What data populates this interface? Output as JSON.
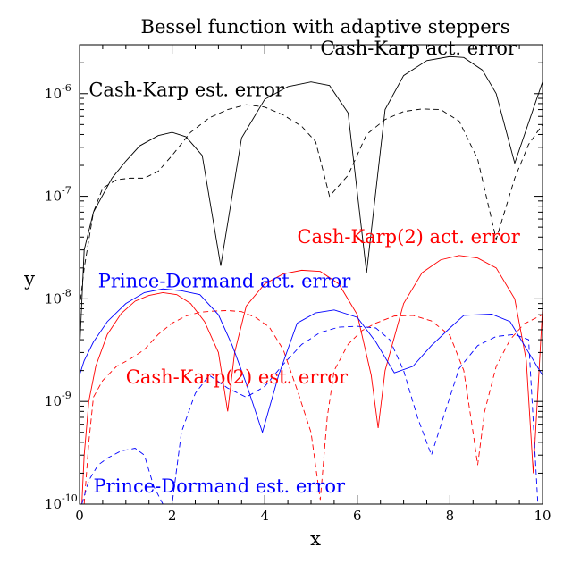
{
  "chart_data": {
    "type": "line",
    "title": "Bessel function with adaptive steppers",
    "xlabel": "x",
    "ylabel": "y",
    "xlim": [
      0,
      10
    ],
    "ylim": [
      1e-10,
      3e-06
    ],
    "yscale": "log",
    "grid": false,
    "x_ticks": [
      0,
      2,
      4,
      6,
      8,
      10
    ],
    "x_tick_labels": [
      "0",
      "2",
      "4",
      "6",
      "8",
      "10"
    ],
    "y_ticks": [
      {
        "value": 1e-10,
        "base": "10",
        "exp": "-10"
      },
      {
        "value": 1e-09,
        "base": "10",
        "exp": "-9"
      },
      {
        "value": 1e-08,
        "base": "10",
        "exp": "-8"
      },
      {
        "value": 1e-07,
        "base": "10",
        "exp": "-7"
      },
      {
        "value": 1e-06,
        "base": "10",
        "exp": "-6"
      }
    ],
    "series": [
      {
        "name": "Cash-Karp act. error",
        "color": "#000000",
        "dash": "solid",
        "label_x": 5.2,
        "label_y": 2.4e-06,
        "x": [
          0.0,
          0.1,
          0.3,
          0.7,
          1.0,
          1.3,
          1.7,
          2.0,
          2.3,
          2.65,
          3.05,
          3.5,
          4.0,
          4.5,
          5.0,
          5.4,
          5.8,
          6.2,
          6.6,
          7.0,
          7.5,
          8.0,
          8.3,
          8.7,
          9.0,
          9.4,
          10.0
        ],
        "y": [
          3e-09,
          3e-08,
          7e-08,
          1.5e-07,
          2.2e-07,
          3.1e-07,
          3.9e-07,
          4.2e-07,
          3.8e-07,
          2.5e-07,
          2.1e-08,
          3.7e-07,
          8.8e-07,
          1.17e-06,
          1.3e-06,
          1.2e-06,
          6.5e-07,
          1.8e-08,
          7e-07,
          1.5e-06,
          2.1e-06,
          2.3e-06,
          2.25e-06,
          1.7e-06,
          1e-06,
          2.1e-07,
          1.3e-06
        ]
      },
      {
        "name": "Cash-Karp est. error",
        "color": "#000000",
        "dash": "dashed",
        "label_x": 0.2,
        "label_y": 9.5e-07,
        "x": [
          0.0,
          0.1,
          0.3,
          0.5,
          0.8,
          1.1,
          1.4,
          1.7,
          2.0,
          2.4,
          2.8,
          3.2,
          3.6,
          4.0,
          4.4,
          4.8,
          5.1,
          5.4,
          5.8,
          6.2,
          6.6,
          7.0,
          7.4,
          7.8,
          8.2,
          8.6,
          9.0,
          9.4,
          9.7,
          10.0
        ],
        "y": [
          8e-09,
          2e-08,
          7e-08,
          1.2e-07,
          1.45e-07,
          1.5e-07,
          1.5e-07,
          1.75e-07,
          2.5e-07,
          4.2e-07,
          5.8e-07,
          7e-07,
          7.8e-07,
          7.4e-07,
          6.2e-07,
          4.8e-07,
          3.4e-07,
          1e-07,
          1.6e-07,
          4e-07,
          5.6e-07,
          6.7e-07,
          7.1e-07,
          7e-07,
          5.4e-07,
          2.3e-07,
          3.8e-08,
          1.5e-07,
          3.2e-07,
          5e-07
        ]
      },
      {
        "name": "Cash-Karp(2) act. error",
        "color": "#ff0000",
        "dash": "solid",
        "label_x": 4.7,
        "label_y": 3.5e-08,
        "x": [
          0.05,
          0.1,
          0.2,
          0.35,
          0.6,
          0.9,
          1.2,
          1.5,
          1.8,
          2.1,
          2.4,
          2.7,
          3.0,
          3.2,
          3.35,
          3.6,
          4.0,
          4.4,
          4.8,
          5.2,
          5.6,
          6.0,
          6.3,
          6.45,
          6.6,
          7.0,
          7.4,
          7.8,
          8.2,
          8.6,
          9.0,
          9.4,
          9.65,
          9.8,
          10.0
        ],
        "y": [
          1e-10,
          3e-10,
          1e-09,
          2.2e-09,
          4.5e-09,
          7.2e-09,
          9.5e-09,
          1.08e-08,
          1.15e-08,
          1.1e-08,
          9e-09,
          6e-09,
          3e-09,
          8e-10,
          3e-09,
          8.5e-09,
          1.4e-08,
          1.75e-08,
          1.9e-08,
          1.85e-08,
          1.4e-08,
          7e-09,
          1.8e-09,
          5.5e-10,
          2e-09,
          9e-09,
          1.8e-08,
          2.4e-08,
          2.65e-08,
          2.5e-08,
          2e-08,
          1e-08,
          2.5e-09,
          2e-10,
          8e-09
        ]
      },
      {
        "name": "Cash-Karp(2) est. error",
        "color": "#ff0000",
        "dash": "dashed",
        "label_x": 1.0,
        "label_y": 1.5e-09,
        "x": [
          0.1,
          0.2,
          0.3,
          0.5,
          0.8,
          1.1,
          1.4,
          1.7,
          2.0,
          2.3,
          2.6,
          2.9,
          3.2,
          3.5,
          3.8,
          4.1,
          4.4,
          4.7,
          5.0,
          5.2,
          5.35,
          5.5,
          5.8,
          6.1,
          6.4,
          6.8,
          7.2,
          7.6,
          8.0,
          8.3,
          8.5,
          8.6,
          8.75,
          9.0,
          9.3,
          9.6,
          10.0
        ],
        "y": [
          1e-10,
          4e-10,
          1.1e-09,
          1.6e-09,
          2.2e-09,
          2.6e-09,
          3.2e-09,
          4.5e-09,
          5.8e-09,
          6.8e-09,
          7.4e-09,
          7.6e-09,
          7.7e-09,
          7.5e-09,
          6.6e-09,
          5.3e-09,
          3.2e-09,
          1.3e-09,
          5e-10,
          1.1e-10,
          7e-10,
          2e-09,
          3.6e-09,
          4.9e-09,
          5.8e-09,
          6.8e-09,
          6.9e-09,
          6.1e-09,
          4.4e-09,
          2e-09,
          5e-10,
          2.4e-10,
          8e-10,
          2.2e-09,
          4e-09,
          5.7e-09,
          7e-09
        ]
      },
      {
        "name": "Prince-Dormand act. error",
        "color": "#0000ff",
        "dash": "solid",
        "label_x": 0.4,
        "label_y": 1.3e-08,
        "x": [
          0.0,
          0.1,
          0.3,
          0.6,
          1.0,
          1.4,
          1.8,
          2.2,
          2.6,
          3.0,
          3.3,
          3.6,
          3.95,
          4.3,
          4.7,
          5.1,
          5.5,
          6.0,
          6.4,
          6.8,
          7.2,
          7.6,
          8.0,
          8.3,
          8.6,
          8.9,
          9.3,
          9.7,
          10.0
        ],
        "y": [
          1.8e-09,
          2.5e-09,
          3.8e-09,
          6e-09,
          9e-09,
          1.15e-08,
          1.25e-08,
          1.2e-08,
          1.1e-08,
          7e-09,
          3.5e-09,
          1.5e-09,
          5e-10,
          1.8e-09,
          5.8e-09,
          7.3e-09,
          7.8e-09,
          6.6e-09,
          3.8e-09,
          1.9e-09,
          2.2e-09,
          3.5e-09,
          5.2e-09,
          6.9e-09,
          7e-09,
          7.1e-09,
          6e-09,
          3e-09,
          1.8e-09
        ]
      },
      {
        "name": "Prince-Dormand est. error",
        "color": "#0000ff",
        "dash": "dashed",
        "label_x": 0.3,
        "label_y": 1.3e-10,
        "x": [
          0.05,
          0.2,
          0.4,
          0.6,
          0.9,
          1.2,
          1.4,
          1.6,
          1.8,
          2.0,
          2.2,
          2.5,
          2.8,
          3.2,
          3.6,
          4.0,
          4.4,
          4.8,
          5.2,
          5.6,
          6.0,
          6.4,
          6.7,
          7.0,
          7.3,
          7.6,
          7.9,
          8.2,
          8.6,
          9.0,
          9.4,
          9.7,
          9.9
        ],
        "y": [
          1e-10,
          1.7e-10,
          2.4e-10,
          2.8e-10,
          3.3e-10,
          3.5e-10,
          3e-10,
          1.5e-10,
          1e-10,
          1e-10,
          5e-10,
          1.2e-09,
          1.8e-09,
          1.35e-09,
          1.1e-09,
          1.4e-09,
          2.3e-09,
          3.6e-09,
          4.7e-09,
          5.3e-09,
          5.4e-09,
          5.2e-09,
          4e-09,
          2e-09,
          7e-10,
          3e-10,
          8e-10,
          2.1e-09,
          3.5e-09,
          4.3e-09,
          4.5e-09,
          4e-09,
          1e-10
        ]
      }
    ]
  }
}
